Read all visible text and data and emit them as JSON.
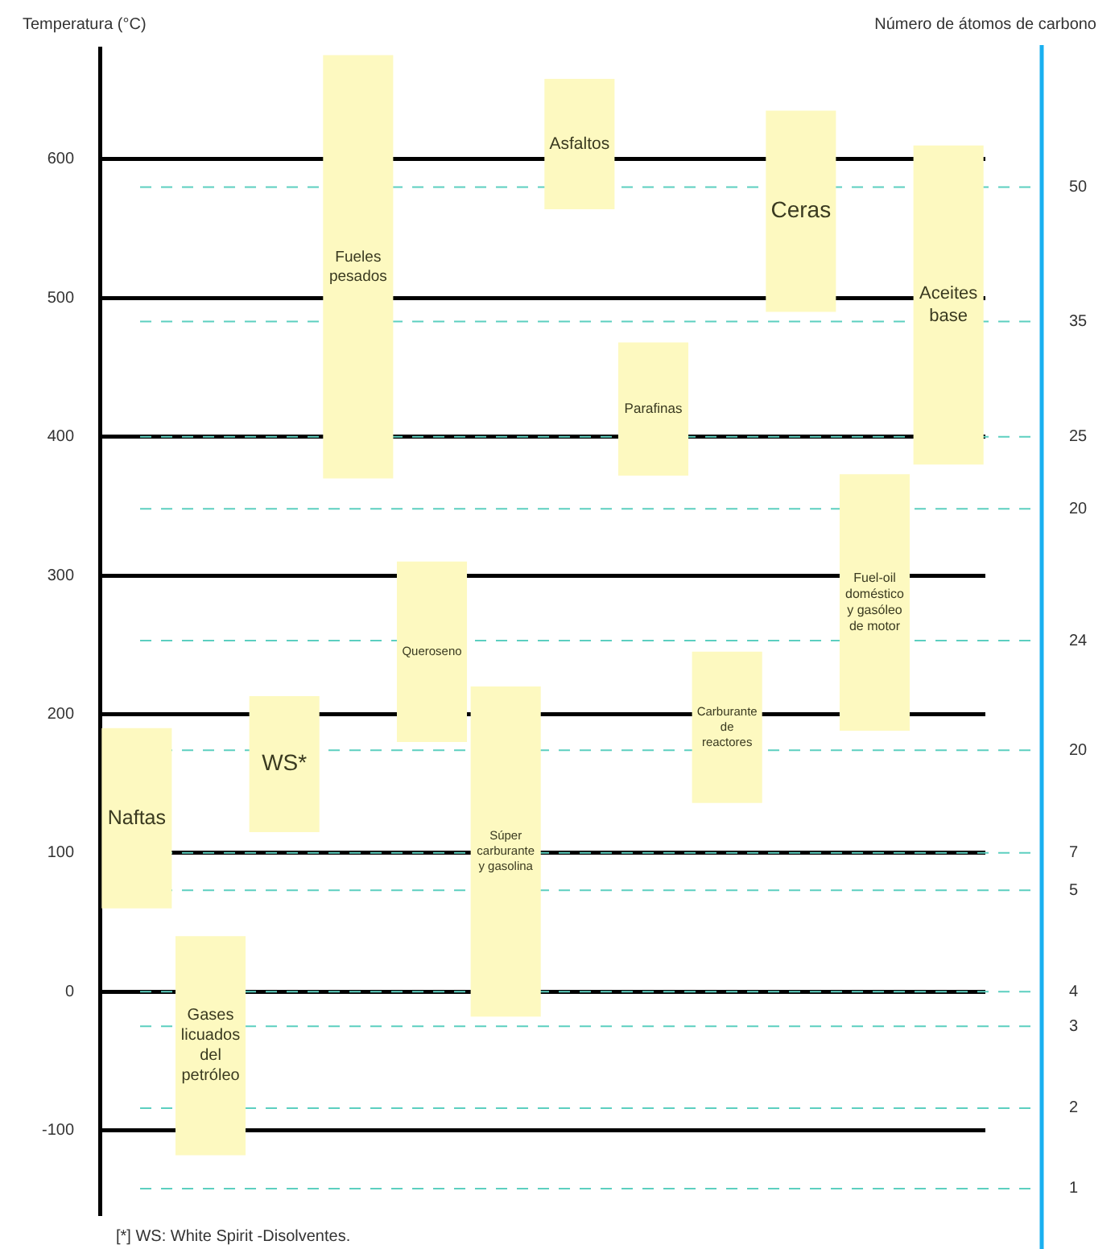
{
  "chart_data": {
    "type": "bar",
    "ylabel": "Temperatura (°C)",
    "y2label": "Número de átomos de carbono",
    "categories": [
      "Naftas",
      "Gases licuados del petróleo",
      "WS*",
      "Fueles pesados",
      "Queroseno",
      "Súper carburante y gasolina",
      "Asfaltos",
      "Parafinas",
      "Carburante de reactores",
      "Ceras",
      "Fuel-oil doméstico y gasóleo de motor",
      "Aceites base"
    ],
    "base": [
      60,
      -118,
      115,
      370,
      180,
      -18,
      564,
      372,
      136,
      490,
      188,
      380
    ],
    "values": [
      130,
      158,
      98,
      305,
      130,
      238,
      94,
      96,
      109,
      145,
      185,
      230
    ],
    "color": "#fdf9c0",
    "ylim": [
      -160,
      680
    ],
    "yticks": [
      -100,
      0,
      100,
      200,
      300,
      400,
      500,
      600
    ],
    "grid": "y",
    "tick_labels": "y",
    "ref_lines": [
      {
        "axis": "y",
        "value": 580,
        "color": "#5ccfc0",
        "line_style": "dashed"
      },
      {
        "axis": "y",
        "value": 483,
        "color": "#5ccfc0",
        "line_style": "dashed"
      },
      {
        "axis": "y",
        "value": 400,
        "color": "#5ccfc0",
        "line_style": "dashed"
      },
      {
        "axis": "y",
        "value": 348,
        "color": "#5ccfc0",
        "line_style": "dashed"
      },
      {
        "axis": "y",
        "value": 253,
        "color": "#5ccfc0",
        "line_style": "dashed"
      },
      {
        "axis": "y",
        "value": 174,
        "color": "#5ccfc0",
        "line_style": "dashed"
      },
      {
        "axis": "y",
        "value": 100,
        "color": "#5ccfc0",
        "line_style": "dashed"
      },
      {
        "axis": "y",
        "value": 73,
        "color": "#5ccfc0",
        "line_style": "dashed"
      },
      {
        "axis": "y",
        "value": 0,
        "color": "#5ccfc0",
        "line_style": "dashed"
      },
      {
        "axis": "y",
        "value": -25,
        "color": "#5ccfc0",
        "line_style": "dashed"
      },
      {
        "axis": "y",
        "value": -84,
        "color": "#5ccfc0",
        "line_style": "dashed"
      },
      {
        "axis": "y",
        "value": -142,
        "color": "#5ccfc0",
        "line_style": "dashed"
      }
    ],
    "annotations": [
      "50",
      "35",
      "25",
      "20",
      "24",
      "20",
      "7",
      "5",
      "4",
      "3",
      "2",
      "1",
      "[*] WS: White Spirit -Disolventes."
    ]
  }
}
